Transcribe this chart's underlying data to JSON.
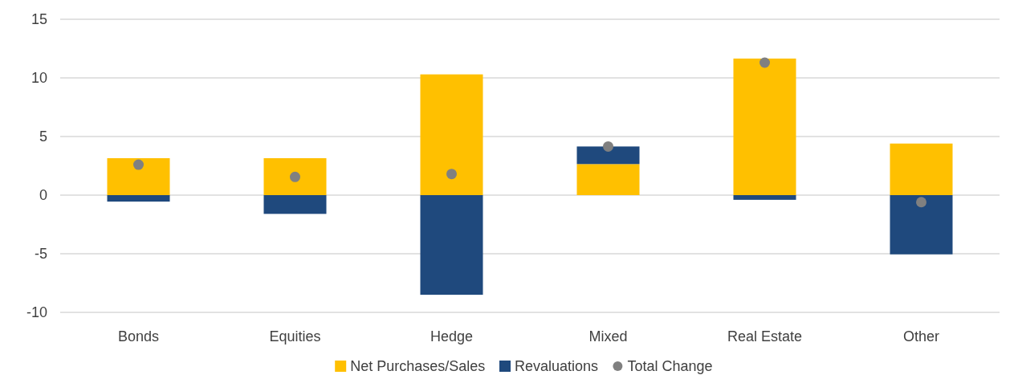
{
  "chart_data": {
    "type": "bar",
    "stacked": true,
    "categories": [
      "Bonds",
      "Equities",
      "Hedge",
      "Mixed",
      "Real Estate",
      "Other"
    ],
    "series": [
      {
        "name": "Net Purchases/Sales",
        "color": "#ffc000",
        "values": [
          3.15,
          3.15,
          10.3,
          2.65,
          11.65,
          4.4
        ]
      },
      {
        "name": "Revaluations",
        "color": "#1f497d",
        "values": [
          -0.55,
          -1.6,
          -8.5,
          1.5,
          -0.4,
          -5.05
        ]
      },
      {
        "name": "Total Change",
        "color": "#808080",
        "type": "scatter",
        "marker": "circle",
        "x": [
          "Bonds",
          "Equities",
          "Hedge",
          "Mixed",
          "Real Estate",
          "Other"
        ],
        "values": [
          2.6,
          1.55,
          1.8,
          4.15,
          11.3,
          -0.6
        ]
      }
    ],
    "ylim": [
      -10,
      15
    ],
    "yticks": [
      -10,
      -5,
      0,
      5,
      10,
      15
    ],
    "grid": "y",
    "legend": "bottom"
  }
}
